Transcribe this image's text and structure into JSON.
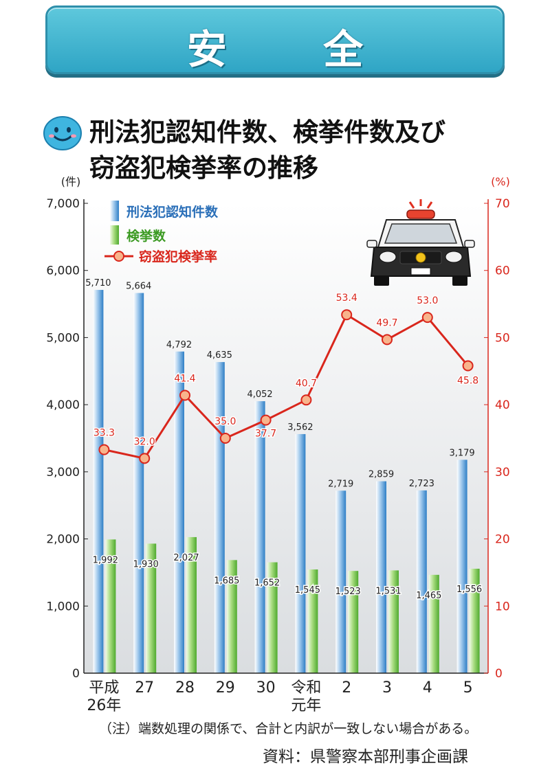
{
  "banner": {
    "title": "安 全"
  },
  "title": {
    "line1": "刑法犯認知件数、検挙件数及び",
    "line2": "窃盗犯検挙率の推移"
  },
  "notes": {
    "note": "（注）端数処理の関係で、合計と内訳が一致しない場合がある。",
    "source": "資料：県警察本部刑事企画課"
  },
  "colors": {
    "recognized": "#3a86cc",
    "arrests": "#5cb83a",
    "rate": "#d9261c",
    "rate_marker_fill": "#f8b48c"
  },
  "icons": [
    "smiley-icon",
    "police-car-icon"
  ],
  "chart_data": {
    "type": "bar",
    "categories": [
      "平成\n26年",
      "27",
      "28",
      "29",
      "30",
      "令和\n元年",
      "2",
      "3",
      "4",
      "5"
    ],
    "left_axis": {
      "unit": "(件)",
      "range": [
        0,
        7000
      ],
      "ticks": [
        "0",
        "1,000",
        "2,000",
        "3,000",
        "4,000",
        "5,000",
        "6,000",
        "7,000"
      ]
    },
    "right_axis": {
      "unit": "(%)",
      "range": [
        0,
        70
      ],
      "ticks": [
        "0",
        "10",
        "20",
        "30",
        "40",
        "50",
        "60",
        "70"
      ]
    },
    "series": [
      {
        "name": "刑法犯認知件数",
        "kind": "bar",
        "axis": "left",
        "values": [
          5710,
          5664,
          4792,
          4635,
          4052,
          3562,
          2719,
          2859,
          2723,
          3179
        ],
        "labels": [
          "5,710",
          "5,664",
          "4,792",
          "4,635",
          "4,052",
          "3,562",
          "2,719",
          "2,859",
          "2,723",
          "3,179"
        ]
      },
      {
        "name": "検挙数",
        "kind": "bar",
        "axis": "left",
        "values": [
          1992,
          1930,
          2027,
          1685,
          1652,
          1545,
          1523,
          1531,
          1465,
          1556
        ],
        "labels": [
          "1,992",
          "1,930",
          "2,027",
          "1,685",
          "1,652",
          "1,545",
          "1,523",
          "1,531",
          "1,465",
          "1,556"
        ]
      },
      {
        "name": "窃盗犯検挙率",
        "kind": "line",
        "axis": "right",
        "values": [
          33.3,
          32.0,
          41.4,
          35.0,
          37.7,
          40.7,
          53.4,
          49.7,
          53.0,
          45.8
        ],
        "labels": [
          "33.3",
          "32.0",
          "41.4",
          "35.0",
          "37.7",
          "40.7",
          "53.4",
          "49.7",
          "53.0",
          "45.8"
        ]
      }
    ],
    "legend": "top-left",
    "grid": false
  }
}
